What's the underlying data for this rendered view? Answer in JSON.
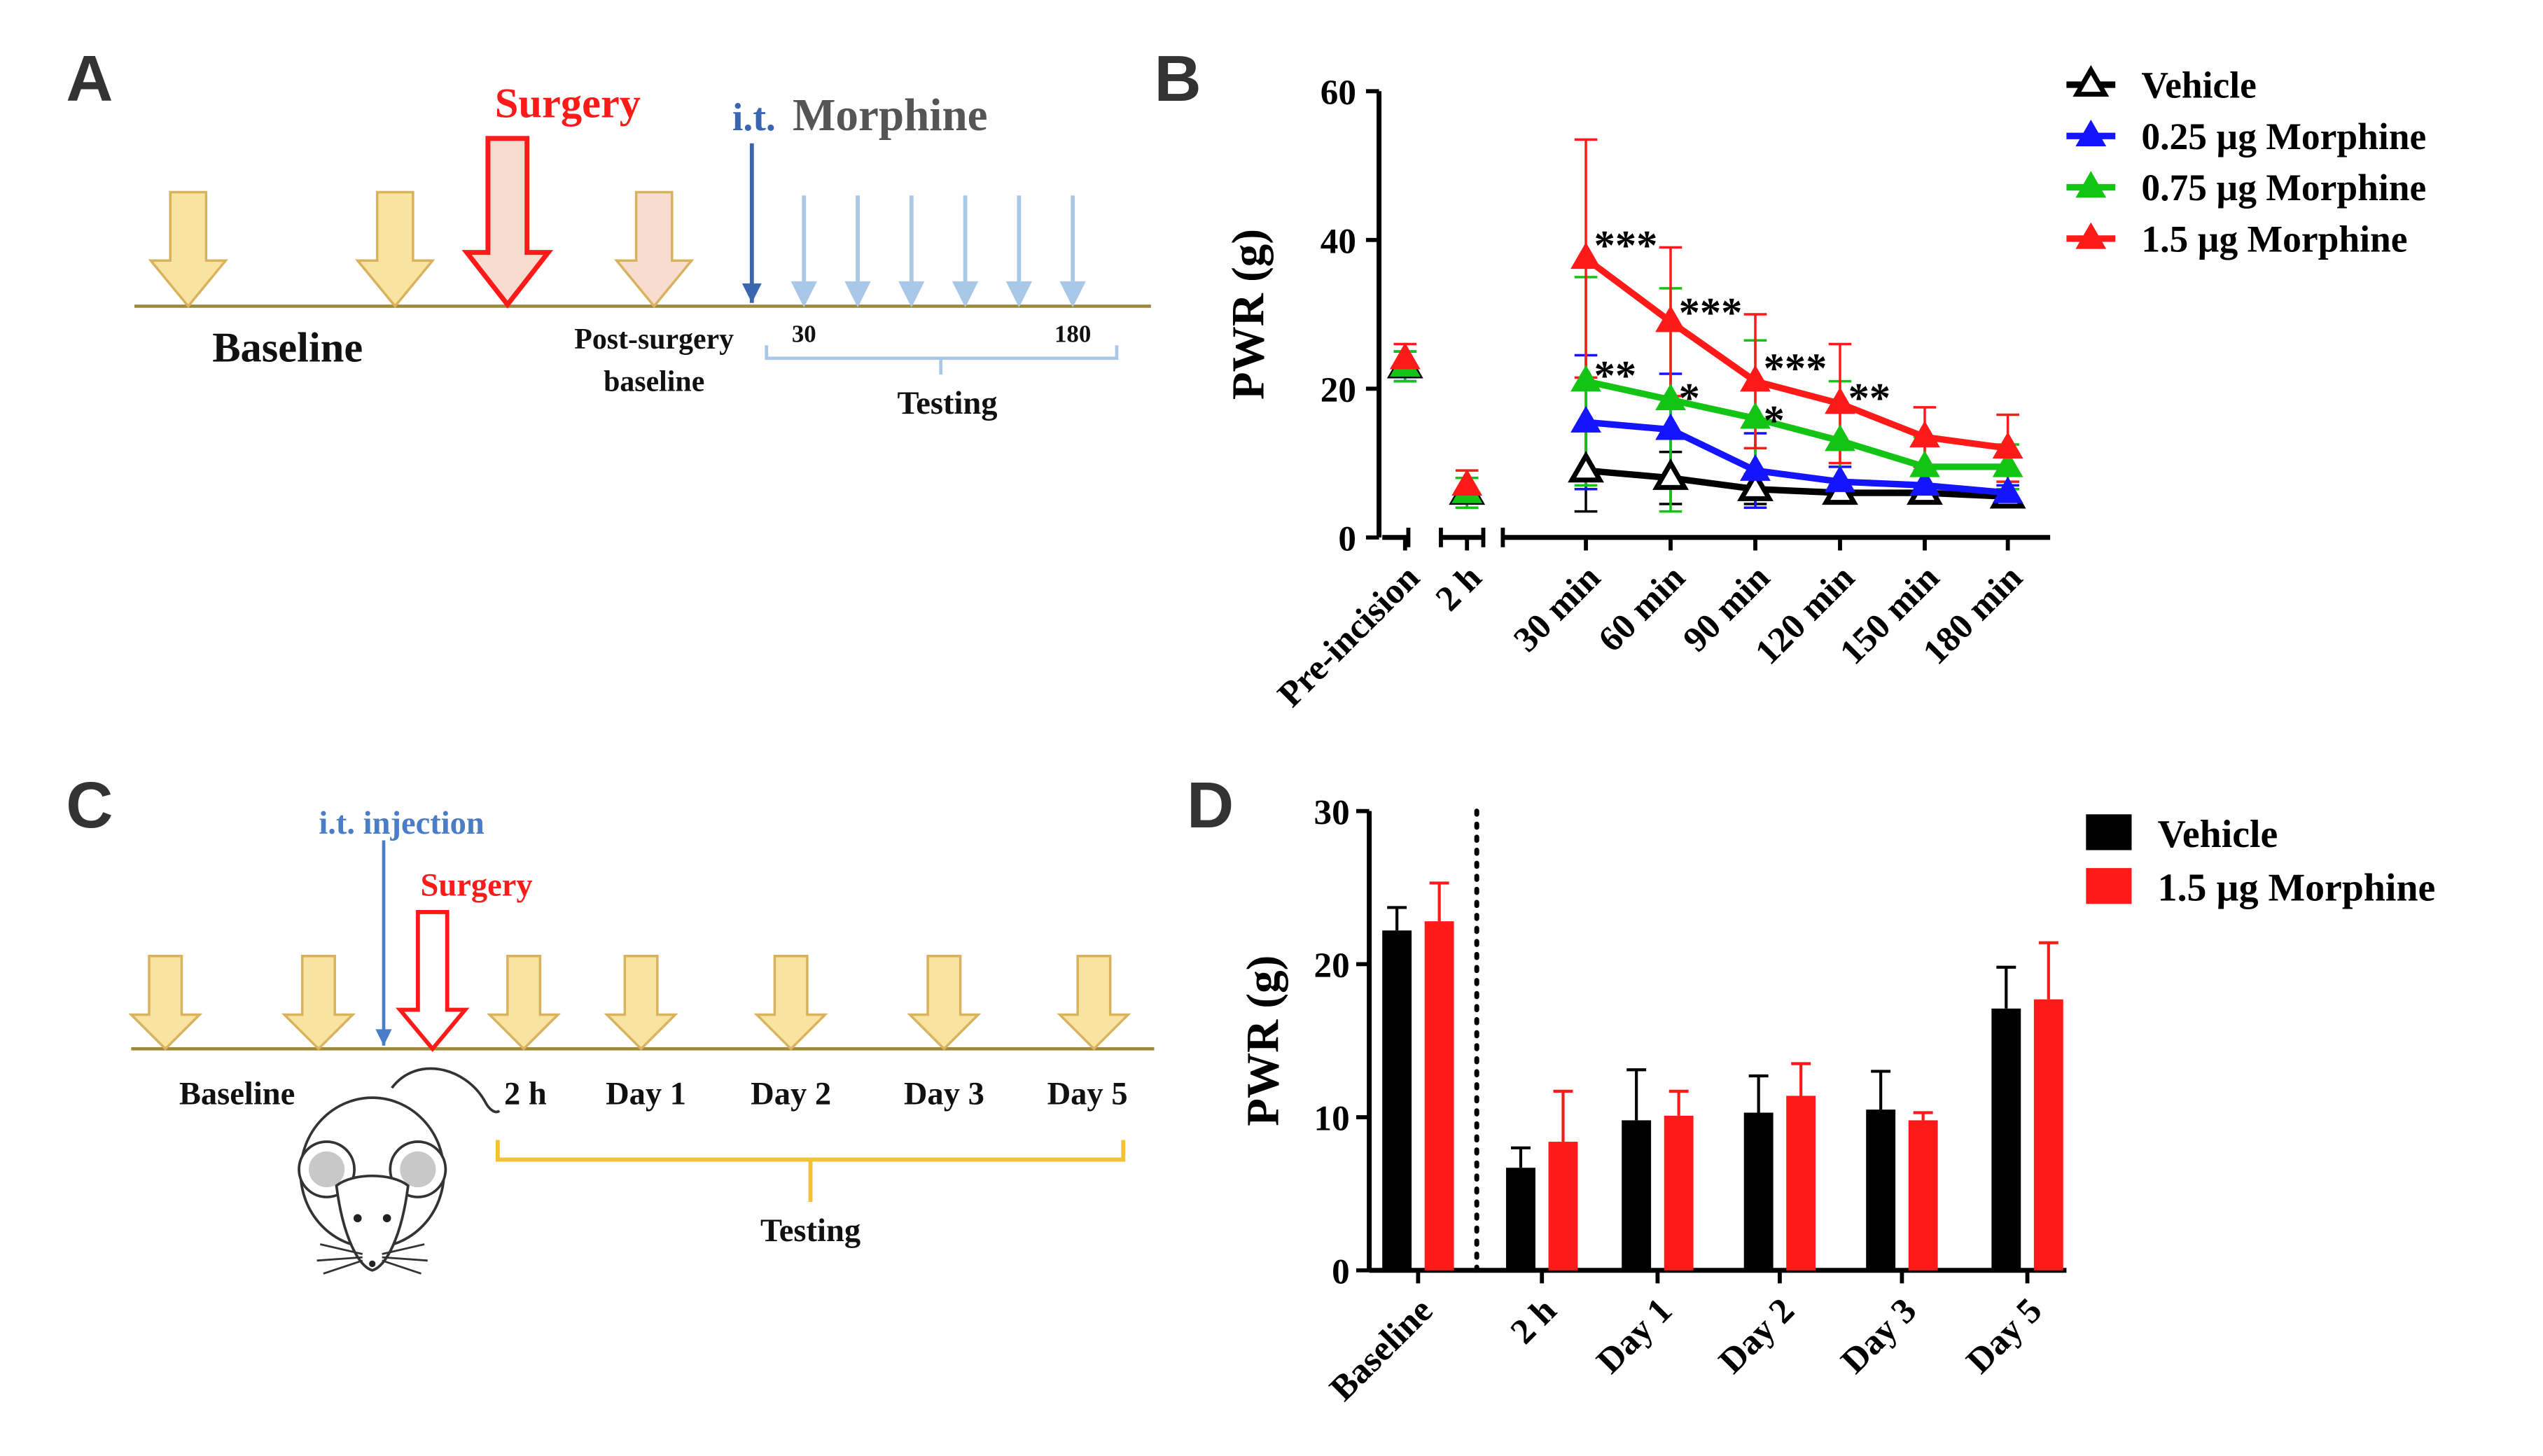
{
  "panel_labels": [
    "A",
    "B",
    "C",
    "D"
  ],
  "colors": {
    "yellow_arrow": "#f9e3a1",
    "yellow_arrow_stroke": "#d8b25c",
    "pink_arrow": "#f9dcd0",
    "red": "#ff1a1a",
    "blue": "#4a7cc8",
    "light_blue": "#a9c8e8",
    "timeline": "#a0893a",
    "bracket_yellow": "#f2c232",
    "vehicle": "#000000",
    "m025": "#1414ff",
    "m075": "#14c414",
    "m15": "#ff1a1a"
  },
  "panel_a": {
    "title_surgery": "Surgery",
    "title_it": "i.t.",
    "title_morphine": "Morphine",
    "label_baseline": "Baseline",
    "label_post_surgery": "Post-surgery",
    "label_post_baseline": "baseline",
    "tick_start": "30",
    "tick_end": "180",
    "label_testing": "Testing"
  },
  "panel_c": {
    "title_injection": "i.t. injection",
    "title_surgery": "Surgery",
    "label_baseline": "Baseline",
    "timepoints": [
      "2 h",
      "Day 1",
      "Day 2",
      "Day 3",
      "Day 5"
    ],
    "label_testing": "Testing"
  },
  "chart_data": [
    {
      "panel": "B",
      "type": "line",
      "title": "",
      "ylabel": "PWR (g)",
      "xlabel": "",
      "ylim": [
        0,
        60
      ],
      "yticks": [
        0,
        20,
        40,
        60
      ],
      "categories": [
        "Pre-incision",
        "2 h",
        "30 min",
        "60 min",
        "90 min",
        "120 min",
        "150 min",
        "180 min"
      ],
      "legend_position": "top-right",
      "series": [
        {
          "name": "Vehicle",
          "marker": "open-triangle",
          "color_key": "vehicle",
          "values": [
            23,
            6,
            9,
            8,
            6.5,
            6,
            6,
            5.5
          ],
          "errors": [
            2,
            2,
            5.5,
            3.5,
            2,
            1,
            1,
            1
          ]
        },
        {
          "name": "0.25 µg Morphine",
          "marker": "filled-triangle",
          "color_key": "m025",
          "values": [
            23,
            6,
            15.5,
            14.5,
            9,
            7.5,
            7,
            6
          ],
          "errors": [
            2,
            2,
            9,
            7.5,
            5,
            2,
            2,
            1
          ]
        },
        {
          "name": "0.75 µg Morphine",
          "marker": "filled-triangle",
          "color_key": "m075",
          "values": [
            23,
            6,
            21,
            18.5,
            16,
            13,
            9.5,
            9.5
          ],
          "errors": [
            2,
            2,
            14,
            15,
            10.5,
            8,
            4,
            3
          ]
        },
        {
          "name": "1.5 µg Morphine",
          "marker": "filled-triangle",
          "color_key": "m15",
          "values": [
            24,
            7,
            37.5,
            29,
            21,
            18,
            13.5,
            12
          ],
          "errors": [
            2,
            2,
            16,
            10,
            9,
            8,
            4,
            4.5
          ]
        }
      ],
      "annotations": [
        {
          "text": "***",
          "category": "30 min",
          "y": 40
        },
        {
          "text": "***",
          "category": "60 min",
          "y": 31
        },
        {
          "text": "***",
          "category": "90 min",
          "y": 23.5
        },
        {
          "text": "**",
          "category": "120 min",
          "y": 19.5
        },
        {
          "text": "**",
          "category": "30 min",
          "y": 22.5
        },
        {
          "text": "*",
          "category": "60 min",
          "y": 19.5
        },
        {
          "text": "*",
          "category": "90 min",
          "y": 16.5
        }
      ]
    },
    {
      "panel": "D",
      "type": "bar",
      "title": "",
      "ylabel": "PWR (g)",
      "xlabel": "",
      "ylim": [
        0,
        30
      ],
      "yticks": [
        0,
        10,
        20,
        30
      ],
      "categories": [
        "Baseline",
        "2 h",
        "Day 1",
        "Day 2",
        "Day 3",
        "Day 5"
      ],
      "legend_position": "top-right",
      "series": [
        {
          "name": "Vehicle",
          "color_key": "vehicle",
          "values": [
            22.2,
            6.7,
            9.8,
            10.3,
            10.5,
            17.1
          ],
          "errors": [
            1.5,
            1.3,
            3.3,
            2.4,
            2.5,
            2.7
          ]
        },
        {
          "name": "1.5 µg Morphine",
          "color_key": "m15",
          "values": [
            22.8,
            8.4,
            10.1,
            11.4,
            9.8,
            17.7
          ],
          "errors": [
            2.5,
            3.3,
            1.6,
            2.1,
            0.5,
            3.7
          ]
        }
      ]
    }
  ]
}
